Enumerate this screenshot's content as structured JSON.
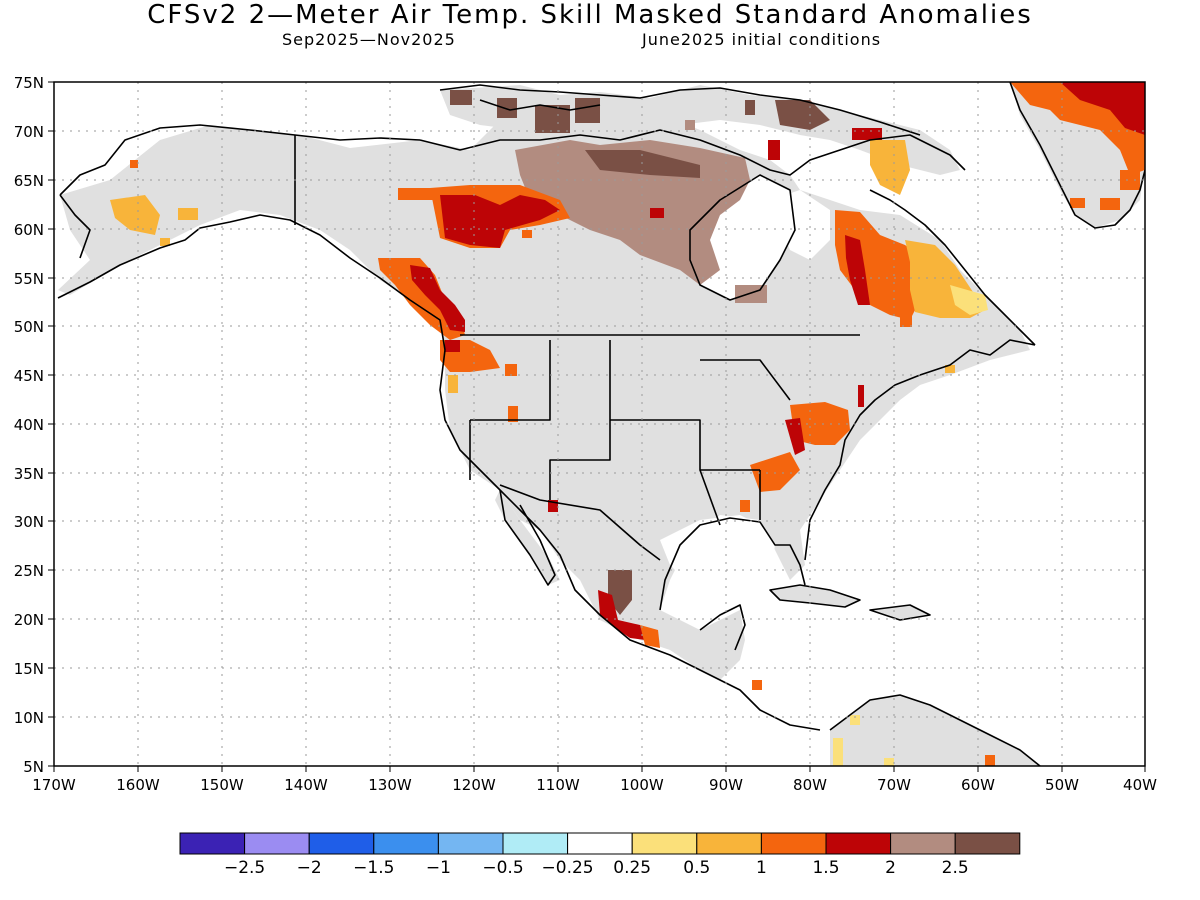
{
  "title": "CFSv2 2—Meter Air Temp. Skill Masked Standard Anomalies",
  "subtitle_left": "Sep2025—Nov2025",
  "subtitle_right": "June2025 initial conditions",
  "lat_labels": [
    "75N",
    "70N",
    "65N",
    "60N",
    "55N",
    "50N",
    "45N",
    "40N",
    "35N",
    "30N",
    "25N",
    "20N",
    "15N",
    "10N",
    "5N"
  ],
  "lon_labels": [
    "170W",
    "160W",
    "150W",
    "140W",
    "130W",
    "120W",
    "110W",
    "100W",
    "90W",
    "80W",
    "70W",
    "60W",
    "50W",
    "40W"
  ],
  "colorbar": {
    "colors": [
      "#3b22b4",
      "#9b8cf2",
      "#1f5ee8",
      "#3b8fee",
      "#74b6f2",
      "#b0ecf6",
      "#ffffff",
      "#fbe07a",
      "#f8b43a",
      "#f4650e",
      "#bd0406",
      "#b28c80",
      "#7a5045"
    ],
    "tick_labels": [
      "−2.5",
      "−2",
      "−1.5",
      "−1",
      "−0.5",
      "−0.25",
      "0.25",
      "0.5",
      "1",
      "1.5",
      "2",
      "2.5"
    ]
  },
  "legend_colors": {
    "masked_gray": "#e0e0e0",
    "coast_line": "#000000"
  }
}
